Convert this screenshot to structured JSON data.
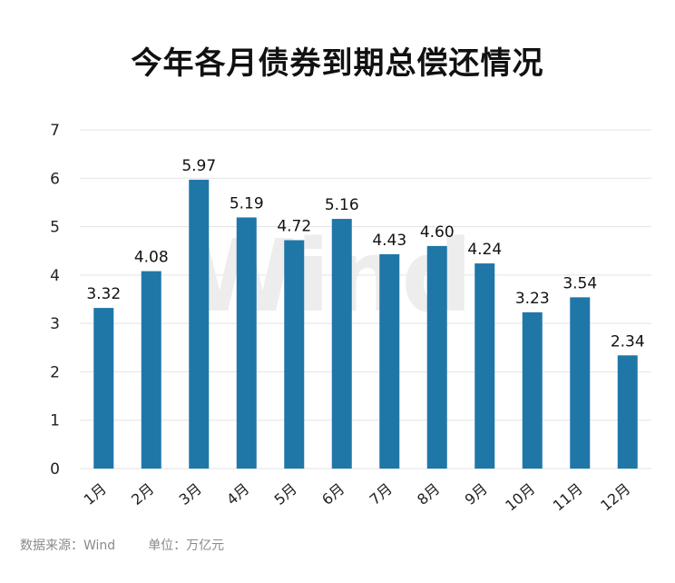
{
  "chart_data": {
    "type": "bar",
    "title": "今年各月债券到期总偿还情况",
    "categories": [
      "1月",
      "2月",
      "3月",
      "4月",
      "5月",
      "6月",
      "7月",
      "8月",
      "9月",
      "10月",
      "11月",
      "12月"
    ],
    "values": [
      3.32,
      4.08,
      5.97,
      5.19,
      4.72,
      5.16,
      4.43,
      4.6,
      4.24,
      3.23,
      3.54,
      2.34
    ],
    "data_labels": [
      "3.32",
      "4.08",
      "5.97",
      "5.19",
      "4.72",
      "5.16",
      "4.43",
      "4.60",
      "4.24",
      "3.23",
      "3.54",
      "2.34"
    ],
    "ylim": [
      0,
      7
    ],
    "yticks": [
      "0",
      "1",
      "2",
      "3",
      "4",
      "5",
      "6",
      "7"
    ],
    "grid": true,
    "bar_color": "#1f77a8",
    "watermark": "Wind"
  },
  "footer": {
    "source": "数据来源：Wind",
    "unit": "单位：万亿元"
  }
}
